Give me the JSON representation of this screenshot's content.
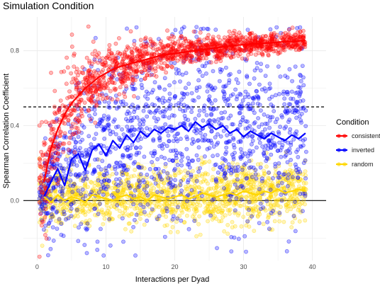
{
  "chart_data": {
    "type": "scatter",
    "title": "Simulation Condition",
    "xlabel": "Interactions per Dyad",
    "ylabel": "Spearman Correlation Coefficient",
    "xlim": [
      -2,
      42
    ],
    "ylim": [
      -0.32,
      0.98
    ],
    "x_ticks": [
      0,
      10,
      20,
      30,
      40
    ],
    "y_ticks": [
      0.0,
      0.4,
      0.8
    ],
    "y_tick_labels": [
      "0.0",
      "0.4",
      "0.8"
    ],
    "x_tick_labels": [
      "0",
      "10",
      "20",
      "30",
      "40"
    ],
    "grid": true,
    "reference_lines": [
      {
        "y": 0.5,
        "style": "dashed",
        "color": "#000000"
      },
      {
        "y": 0.0,
        "style": "solid",
        "color": "#000000"
      }
    ],
    "legend": {
      "title": "Condition",
      "placement": "right"
    },
    "series": [
      {
        "name": "consistent",
        "color": "#ff0000",
        "x": [
          1,
          2,
          3,
          4,
          5,
          6,
          7,
          8,
          9,
          10,
          11,
          12,
          13,
          14,
          15,
          16,
          17,
          18,
          19,
          20,
          21,
          22,
          23,
          24,
          25,
          26,
          27,
          28,
          29,
          30,
          31,
          32,
          33,
          34,
          35,
          36,
          37,
          38,
          39
        ],
        "values": [
          0.1,
          0.28,
          0.38,
          0.46,
          0.52,
          0.56,
          0.6,
          0.63,
          0.66,
          0.68,
          0.7,
          0.715,
          0.725,
          0.735,
          0.745,
          0.755,
          0.765,
          0.775,
          0.78,
          0.785,
          0.79,
          0.795,
          0.8,
          0.805,
          0.81,
          0.815,
          0.82,
          0.825,
          0.83,
          0.832,
          0.835,
          0.838,
          0.84,
          0.842,
          0.845,
          0.848,
          0.85,
          0.852,
          0.855
        ]
      },
      {
        "name": "inverted",
        "color": "#0000ff",
        "x": [
          1,
          2,
          3,
          4,
          5,
          6,
          7,
          8,
          9,
          10,
          11,
          12,
          13,
          14,
          15,
          16,
          17,
          18,
          19,
          20,
          21,
          22,
          23,
          24,
          25,
          26,
          27,
          28,
          29,
          30,
          31,
          32,
          33,
          34,
          35,
          36,
          37,
          38,
          39
        ],
        "values": [
          0.02,
          0.1,
          0.17,
          0.08,
          0.22,
          0.25,
          0.16,
          0.27,
          0.3,
          0.24,
          0.32,
          0.28,
          0.35,
          0.31,
          0.37,
          0.34,
          0.38,
          0.36,
          0.39,
          0.38,
          0.4,
          0.37,
          0.42,
          0.39,
          0.41,
          0.38,
          0.4,
          0.36,
          0.38,
          0.34,
          0.37,
          0.35,
          0.33,
          0.36,
          0.34,
          0.32,
          0.35,
          0.33,
          0.36
        ]
      },
      {
        "name": "random",
        "color": "#ffd700",
        "x": [
          1,
          2,
          3,
          4,
          5,
          6,
          7,
          8,
          9,
          10,
          11,
          12,
          13,
          14,
          15,
          16,
          17,
          18,
          19,
          20,
          21,
          22,
          23,
          24,
          25,
          26,
          27,
          28,
          29,
          30,
          31,
          32,
          33,
          34,
          35,
          36,
          37,
          38,
          39
        ],
        "values": [
          0.02,
          -0.01,
          0.03,
          0.0,
          0.02,
          0.01,
          -0.01,
          0.03,
          0.02,
          0.01,
          0.0,
          0.02,
          0.03,
          0.01,
          0.02,
          0.0,
          0.03,
          0.02,
          0.01,
          0.02,
          0.03,
          0.01,
          0.02,
          0.04,
          0.03,
          0.02,
          0.03,
          0.04,
          0.03,
          0.05,
          0.04,
          0.03,
          0.05,
          0.04,
          0.06,
          0.04,
          0.05,
          0.06,
          0.05
        ]
      }
    ]
  }
}
